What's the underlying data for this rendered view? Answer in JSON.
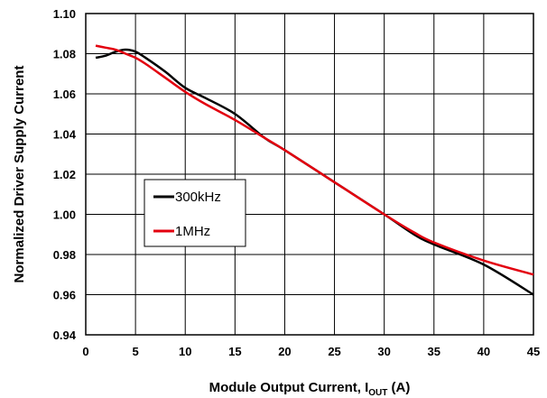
{
  "chart_data": {
    "type": "line",
    "title": "",
    "xlabel": "Module Output Current, ",
    "xlabel_sub": "OUT",
    "xlabel_main": "I",
    "xlabel_unit": " (A)",
    "ylabel": "Normalized Driver Supply Current",
    "xlim": [
      0,
      45
    ],
    "ylim": [
      0.94,
      1.1
    ],
    "xticks": [
      0,
      5,
      10,
      15,
      20,
      25,
      30,
      35,
      40,
      45
    ],
    "xtick_labels": [
      "0",
      "5",
      "10",
      "15",
      "20",
      "25",
      "30",
      "35",
      "40",
      "45"
    ],
    "yticks": [
      0.94,
      0.96,
      0.98,
      1.0,
      1.02,
      1.04,
      1.06,
      1.08,
      1.1
    ],
    "ytick_labels": [
      "0.94",
      "0.96",
      "0.98",
      "1.00",
      "1.02",
      "1.04",
      "1.06",
      "1.08",
      "1.10"
    ],
    "grid": true,
    "legend_position": "center-left",
    "series": [
      {
        "name": "300kHz",
        "color": "#000000",
        "x": [
          1,
          2,
          3,
          4,
          5,
          6,
          8,
          10,
          12,
          15,
          18,
          20,
          25,
          30,
          33,
          35,
          40,
          45
        ],
        "y": [
          1.078,
          1.079,
          1.081,
          1.082,
          1.081,
          1.078,
          1.071,
          1.063,
          1.058,
          1.05,
          1.038,
          1.032,
          1.016,
          1.0,
          0.99,
          0.985,
          0.975,
          0.96
        ]
      },
      {
        "name": "1MHz",
        "color": "#e3000f",
        "x": [
          1,
          2,
          3,
          4,
          5,
          6,
          8,
          10,
          12,
          15,
          18,
          20,
          25,
          30,
          33,
          35,
          40,
          45
        ],
        "y": [
          1.084,
          1.083,
          1.082,
          1.08,
          1.078,
          1.075,
          1.068,
          1.061,
          1.055,
          1.047,
          1.038,
          1.032,
          1.016,
          1.0,
          0.991,
          0.986,
          0.977,
          0.97
        ]
      }
    ]
  }
}
